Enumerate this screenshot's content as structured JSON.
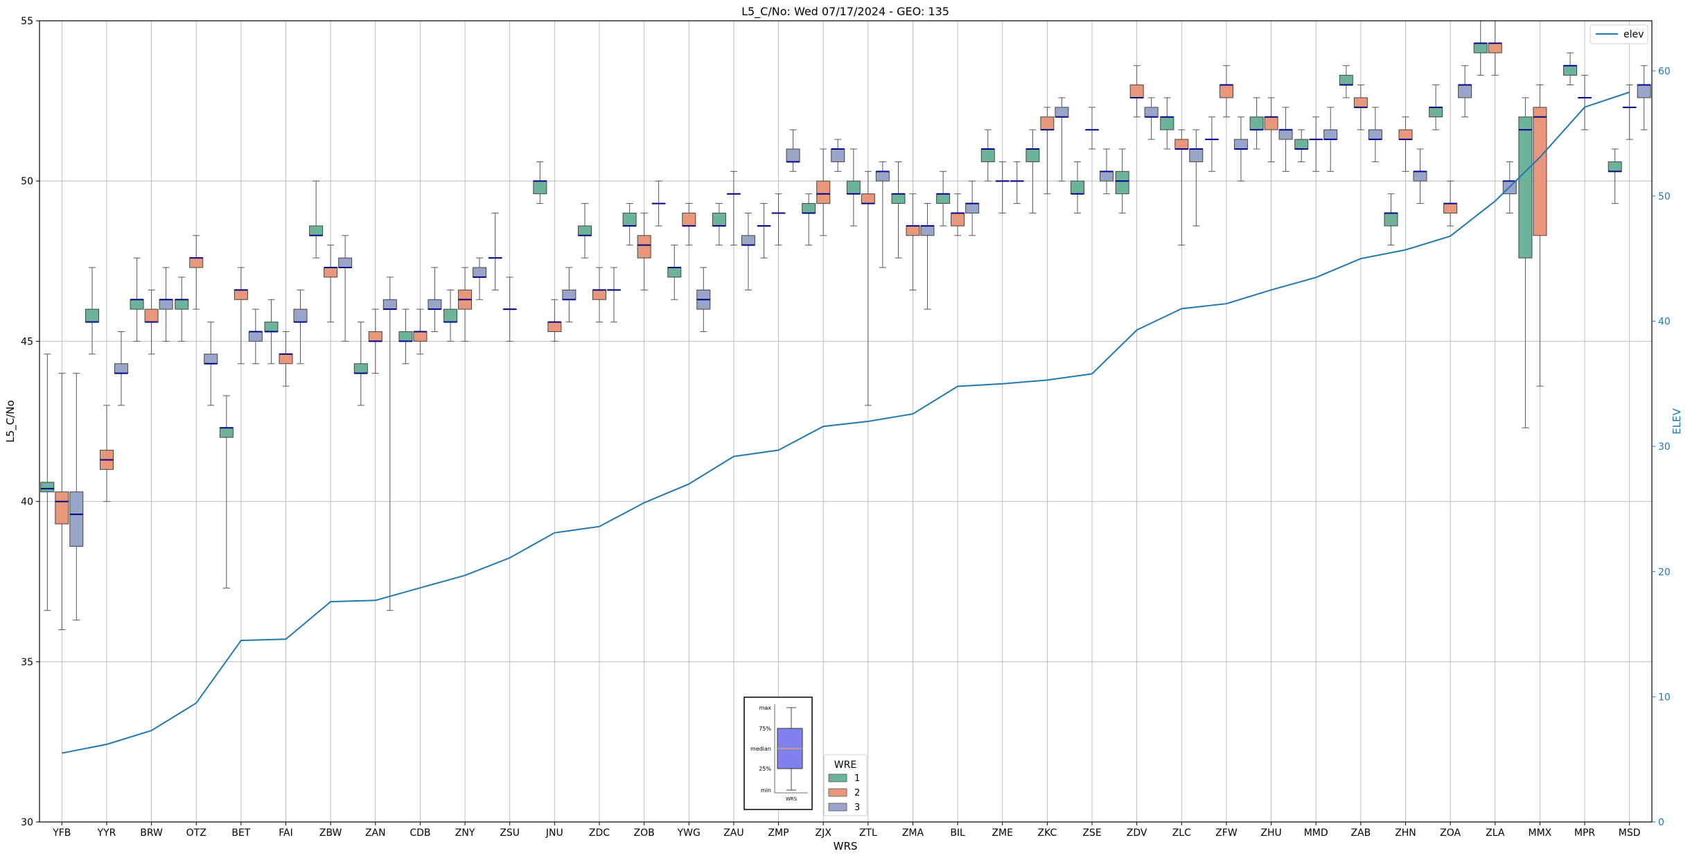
{
  "chart_data": {
    "type": "box",
    "title": "L5_C/No: Wed 07/17/2024 - GEO: 135",
    "xlabel": "WRS",
    "ylabel": "L5_C/No",
    "y2label": "ELEV",
    "ylim": [
      30,
      55
    ],
    "y2lim": [
      0,
      64
    ],
    "yticks": [
      30,
      35,
      40,
      45,
      50,
      55
    ],
    "y2ticks": [
      0,
      10,
      20,
      30,
      40,
      50,
      60
    ],
    "grid": true,
    "categories": [
      "YFB",
      "YYR",
      "BRW",
      "OTZ",
      "BET",
      "FAI",
      "ZBW",
      "ZAN",
      "CDB",
      "ZNY",
      "ZSU",
      "JNU",
      "ZDC",
      "ZOB",
      "YWG",
      "ZAU",
      "ZMP",
      "ZJX",
      "ZTL",
      "ZMA",
      "BIL",
      "ZME",
      "ZKC",
      "ZSE",
      "ZDV",
      "ZLC",
      "ZFW",
      "ZHU",
      "MMD",
      "ZAB",
      "ZHN",
      "ZOA",
      "ZLA",
      "MMX",
      "MPR",
      "MSD"
    ],
    "legend": {
      "title": "WRE",
      "entries": [
        {
          "label": "1",
          "color": "#6db39a"
        },
        {
          "label": "2",
          "color": "#e9977a"
        },
        {
          "label": "3",
          "color": "#99a5c8"
        }
      ],
      "placement": "bottom-center"
    },
    "line_legend": {
      "label": "elev",
      "placement": "top-right"
    },
    "inset_labels": {
      "max": "max",
      "q3": "75%",
      "median": "median",
      "q1": "25%",
      "min": "min",
      "xlabel": "WRS"
    },
    "boxes": [
      {
        "cat": "YFB",
        "wre": 1,
        "min": 36.6,
        "q1": 40.3,
        "med": 40.4,
        "q3": 40.6,
        "max": 44.6
      },
      {
        "cat": "YFB",
        "wre": 2,
        "min": 36,
        "q1": 39.3,
        "med": 40,
        "q3": 40.3,
        "max": 44
      },
      {
        "cat": "YFB",
        "wre": 3,
        "min": 36.3,
        "q1": 38.6,
        "med": 39.6,
        "q3": 40.3,
        "max": 44
      },
      {
        "cat": "YYR",
        "wre": 1,
        "min": 44.6,
        "q1": 45.6,
        "med": 45.6,
        "q3": 46,
        "max": 47.3
      },
      {
        "cat": "YYR",
        "wre": 2,
        "min": 40,
        "q1": 41,
        "med": 41.3,
        "q3": 41.6,
        "max": 43
      },
      {
        "cat": "YYR",
        "wre": 3,
        "min": 43,
        "q1": 44,
        "med": 44,
        "q3": 44.3,
        "max": 45.3
      },
      {
        "cat": "BRW",
        "wre": 1,
        "min": 45,
        "q1": 46,
        "med": 46.3,
        "q3": 46.3,
        "max": 47.6
      },
      {
        "cat": "BRW",
        "wre": 2,
        "min": 44.6,
        "q1": 45.6,
        "med": 45.6,
        "q3": 46,
        "max": 46.6
      },
      {
        "cat": "BRW",
        "wre": 3,
        "min": 45,
        "q1": 46,
        "med": 46.3,
        "q3": 46.3,
        "max": 47.3
      },
      {
        "cat": "OTZ",
        "wre": 1,
        "min": 45,
        "q1": 46,
        "med": 46.3,
        "q3": 46.3,
        "max": 47
      },
      {
        "cat": "OTZ",
        "wre": 2,
        "min": 46,
        "q1": 47.3,
        "med": 47.6,
        "q3": 47.6,
        "max": 48.3
      },
      {
        "cat": "OTZ",
        "wre": 3,
        "min": 43,
        "q1": 44.3,
        "med": 44.3,
        "q3": 44.6,
        "max": 45.6
      },
      {
        "cat": "BET",
        "wre": 1,
        "min": 37.3,
        "q1": 42,
        "med": 42.3,
        "q3": 42.3,
        "max": 43.3
      },
      {
        "cat": "BET",
        "wre": 2,
        "min": 44.3,
        "q1": 46.3,
        "med": 46.6,
        "q3": 46.6,
        "max": 47.3
      },
      {
        "cat": "BET",
        "wre": 3,
        "min": 44.3,
        "q1": 45,
        "med": 45.3,
        "q3": 45.3,
        "max": 46
      },
      {
        "cat": "FAI",
        "wre": 1,
        "min": 44.3,
        "q1": 45.3,
        "med": 45.3,
        "q3": 45.6,
        "max": 46.3
      },
      {
        "cat": "FAI",
        "wre": 2,
        "min": 43.6,
        "q1": 44.3,
        "med": 44.6,
        "q3": 44.6,
        "max": 45.3
      },
      {
        "cat": "FAI",
        "wre": 3,
        "min": 44.3,
        "q1": 45.6,
        "med": 45.6,
        "q3": 46,
        "max": 46.6
      },
      {
        "cat": "ZBW",
        "wre": 1,
        "min": 47.6,
        "q1": 48.3,
        "med": 48.3,
        "q3": 48.6,
        "max": 50
      },
      {
        "cat": "ZBW",
        "wre": 2,
        "min": 45.6,
        "q1": 47,
        "med": 47.3,
        "q3": 47.3,
        "max": 48
      },
      {
        "cat": "ZBW",
        "wre": 3,
        "min": 45,
        "q1": 47.3,
        "med": 47.3,
        "q3": 47.6,
        "max": 48.3
      },
      {
        "cat": "ZAN",
        "wre": 1,
        "min": 43,
        "q1": 44,
        "med": 44,
        "q3": 44.3,
        "max": 45.6
      },
      {
        "cat": "ZAN",
        "wre": 2,
        "min": 44,
        "q1": 45,
        "med": 45,
        "q3": 45.3,
        "max": 46
      },
      {
        "cat": "ZAN",
        "wre": 3,
        "min": 36.6,
        "q1": 46,
        "med": 46,
        "q3": 46.3,
        "max": 47
      },
      {
        "cat": "CDB",
        "wre": 1,
        "min": 44.3,
        "q1": 45,
        "med": 45,
        "q3": 45.3,
        "max": 46
      },
      {
        "cat": "CDB",
        "wre": 2,
        "min": 44.6,
        "q1": 45,
        "med": 45.3,
        "q3": 45.3,
        "max": 46
      },
      {
        "cat": "CDB",
        "wre": 3,
        "min": 45.3,
        "q1": 46,
        "med": 46,
        "q3": 46.3,
        "max": 47.3
      },
      {
        "cat": "ZNY",
        "wre": 1,
        "min": 45,
        "q1": 45.6,
        "med": 45.6,
        "q3": 46,
        "max": 46.6
      },
      {
        "cat": "ZNY",
        "wre": 2,
        "min": 45,
        "q1": 46,
        "med": 46.3,
        "q3": 46.6,
        "max": 47.3
      },
      {
        "cat": "ZNY",
        "wre": 3,
        "min": 46.3,
        "q1": 47,
        "med": 47,
        "q3": 47.3,
        "max": 47.6
      },
      {
        "cat": "ZSU",
        "wre": 1,
        "min": 46.6,
        "q1": 47.6,
        "med": 47.6,
        "q3": 47.6,
        "max": 49
      },
      {
        "cat": "ZSU",
        "wre": 2,
        "min": 45,
        "q1": 46,
        "med": 46,
        "q3": 46,
        "max": 47
      },
      {
        "cat": "JNU",
        "wre": 1,
        "min": 49.3,
        "q1": 49.6,
        "med": 50,
        "q3": 50,
        "max": 50.6
      },
      {
        "cat": "JNU",
        "wre": 2,
        "min": 45,
        "q1": 45.3,
        "med": 45.6,
        "q3": 45.6,
        "max": 46.3
      },
      {
        "cat": "JNU",
        "wre": 3,
        "min": 45.6,
        "q1": 46.3,
        "med": 46.3,
        "q3": 46.6,
        "max": 47.3
      },
      {
        "cat": "ZDC",
        "wre": 1,
        "min": 47.6,
        "q1": 48.3,
        "med": 48.3,
        "q3": 48.6,
        "max": 49.3
      },
      {
        "cat": "ZDC",
        "wre": 2,
        "min": 45.6,
        "q1": 46.3,
        "med": 46.6,
        "q3": 46.6,
        "max": 47.3
      },
      {
        "cat": "ZDC",
        "wre": 3,
        "min": 45.6,
        "q1": 46.6,
        "med": 46.6,
        "q3": 46.6,
        "max": 47.3
      },
      {
        "cat": "ZOB",
        "wre": 1,
        "min": 48,
        "q1": 48.6,
        "med": 48.6,
        "q3": 49,
        "max": 49.3
      },
      {
        "cat": "ZOB",
        "wre": 2,
        "min": 46.6,
        "q1": 47.6,
        "med": 48,
        "q3": 48.3,
        "max": 49
      },
      {
        "cat": "ZOB",
        "wre": 3,
        "min": 48.6,
        "q1": 49.3,
        "med": 49.3,
        "q3": 49.3,
        "max": 50
      },
      {
        "cat": "YWG",
        "wre": 1,
        "min": 46.3,
        "q1": 47,
        "med": 47.3,
        "q3": 47.3,
        "max": 48
      },
      {
        "cat": "YWG",
        "wre": 2,
        "min": 48,
        "q1": 48.6,
        "med": 48.6,
        "q3": 49,
        "max": 49.3
      },
      {
        "cat": "YWG",
        "wre": 3,
        "min": 45.3,
        "q1": 46,
        "med": 46.3,
        "q3": 46.6,
        "max": 47.3
      },
      {
        "cat": "ZAU",
        "wre": 1,
        "min": 48,
        "q1": 48.6,
        "med": 48.6,
        "q3": 49,
        "max": 49.3
      },
      {
        "cat": "ZAU",
        "wre": 2,
        "min": 48,
        "q1": 49.6,
        "med": 49.6,
        "q3": 49.6,
        "max": 50.3
      },
      {
        "cat": "ZAU",
        "wre": 3,
        "min": 46.6,
        "q1": 48,
        "med": 48,
        "q3": 48.3,
        "max": 49
      },
      {
        "cat": "ZMP",
        "wre": 1,
        "min": 47.6,
        "q1": 48.6,
        "med": 48.6,
        "q3": 48.6,
        "max": 49.3
      },
      {
        "cat": "ZMP",
        "wre": 2,
        "min": 48,
        "q1": 49,
        "med": 49,
        "q3": 49,
        "max": 49.6
      },
      {
        "cat": "ZMP",
        "wre": 3,
        "min": 50.3,
        "q1": 50.6,
        "med": 50.6,
        "q3": 51,
        "max": 51.6
      },
      {
        "cat": "ZJX",
        "wre": 1,
        "min": 48,
        "q1": 49,
        "med": 49,
        "q3": 49.3,
        "max": 49.6
      },
      {
        "cat": "ZJX",
        "wre": 2,
        "min": 48.3,
        "q1": 49.3,
        "med": 49.6,
        "q3": 50,
        "max": 51
      },
      {
        "cat": "ZJX",
        "wre": 3,
        "min": 50.3,
        "q1": 50.6,
        "med": 51,
        "q3": 51,
        "max": 51.3
      },
      {
        "cat": "ZTL",
        "wre": 1,
        "min": 48.6,
        "q1": 49.6,
        "med": 49.6,
        "q3": 50,
        "max": 51
      },
      {
        "cat": "ZTL",
        "wre": 2,
        "min": 43,
        "q1": 49.3,
        "med": 49.3,
        "q3": 49.6,
        "max": 50.3
      },
      {
        "cat": "ZTL",
        "wre": 3,
        "min": 47.3,
        "q1": 50,
        "med": 50.3,
        "q3": 50.3,
        "max": 50.6
      },
      {
        "cat": "ZMA",
        "wre": 1,
        "min": 47.6,
        "q1": 49.3,
        "med": 49.6,
        "q3": 49.6,
        "max": 50.6
      },
      {
        "cat": "ZMA",
        "wre": 2,
        "min": 46.6,
        "q1": 48.3,
        "med": 48.6,
        "q3": 48.6,
        "max": 49.6
      },
      {
        "cat": "ZMA",
        "wre": 3,
        "min": 46,
        "q1": 48.3,
        "med": 48.6,
        "q3": 48.6,
        "max": 49.3
      },
      {
        "cat": "BIL",
        "wre": 1,
        "min": 48.6,
        "q1": 49.3,
        "med": 49.6,
        "q3": 49.6,
        "max": 50.3
      },
      {
        "cat": "BIL",
        "wre": 2,
        "min": 48.3,
        "q1": 48.6,
        "med": 49,
        "q3": 49,
        "max": 49.6
      },
      {
        "cat": "BIL",
        "wre": 3,
        "min": 48.3,
        "q1": 49,
        "med": 49.3,
        "q3": 49.3,
        "max": 50
      },
      {
        "cat": "ZME",
        "wre": 1,
        "min": 50,
        "q1": 50.6,
        "med": 51,
        "q3": 51,
        "max": 51.6
      },
      {
        "cat": "ZME",
        "wre": 2,
        "min": 49,
        "q1": 50,
        "med": 50,
        "q3": 50,
        "max": 50.6
      },
      {
        "cat": "ZME",
        "wre": 3,
        "min": 49.3,
        "q1": 50,
        "med": 50,
        "q3": 50,
        "max": 50.6
      },
      {
        "cat": "ZKC",
        "wre": 1,
        "min": 49,
        "q1": 50.6,
        "med": 51,
        "q3": 51,
        "max": 51.6
      },
      {
        "cat": "ZKC",
        "wre": 2,
        "min": 49.6,
        "q1": 51.6,
        "med": 51.6,
        "q3": 52,
        "max": 52.3
      },
      {
        "cat": "ZKC",
        "wre": 3,
        "min": 50,
        "q1": 52,
        "med": 52,
        "q3": 52.3,
        "max": 52.6
      },
      {
        "cat": "ZSE",
        "wre": 1,
        "min": 49,
        "q1": 49.6,
        "med": 49.6,
        "q3": 50,
        "max": 50.6
      },
      {
        "cat": "ZSE",
        "wre": 2,
        "min": 51,
        "q1": 51.6,
        "med": 51.6,
        "q3": 51.6,
        "max": 52.3
      },
      {
        "cat": "ZSE",
        "wre": 3,
        "min": 49.6,
        "q1": 50,
        "med": 50.3,
        "q3": 50.3,
        "max": 51
      },
      {
        "cat": "ZDV",
        "wre": 1,
        "min": 49,
        "q1": 49.6,
        "med": 50,
        "q3": 50.3,
        "max": 51
      },
      {
        "cat": "ZDV",
        "wre": 2,
        "min": 52,
        "q1": 52.6,
        "med": 52.6,
        "q3": 53,
        "max": 53.6
      },
      {
        "cat": "ZDV",
        "wre": 3,
        "min": 51.3,
        "q1": 52,
        "med": 52,
        "q3": 52.3,
        "max": 52.6
      },
      {
        "cat": "ZLC",
        "wre": 1,
        "min": 51,
        "q1": 51.6,
        "med": 52,
        "q3": 52,
        "max": 52.6
      },
      {
        "cat": "ZLC",
        "wre": 2,
        "min": 48,
        "q1": 51,
        "med": 51,
        "q3": 51.3,
        "max": 51.6
      },
      {
        "cat": "ZLC",
        "wre": 3,
        "min": 48.6,
        "q1": 50.6,
        "med": 51,
        "q3": 51,
        "max": 51.6
      },
      {
        "cat": "ZFW",
        "wre": 1,
        "min": 50.3,
        "q1": 51.3,
        "med": 51.3,
        "q3": 51.3,
        "max": 52
      },
      {
        "cat": "ZFW",
        "wre": 2,
        "min": 52,
        "q1": 52.6,
        "med": 53,
        "q3": 53,
        "max": 53.6
      },
      {
        "cat": "ZFW",
        "wre": 3,
        "min": 50,
        "q1": 51,
        "med": 51,
        "q3": 51.3,
        "max": 52
      },
      {
        "cat": "ZHU",
        "wre": 1,
        "min": 51,
        "q1": 51.6,
        "med": 51.6,
        "q3": 52,
        "max": 52.6
      },
      {
        "cat": "ZHU",
        "wre": 2,
        "min": 50.6,
        "q1": 51.6,
        "med": 52,
        "q3": 52,
        "max": 52.6
      },
      {
        "cat": "ZHU",
        "wre": 3,
        "min": 50.3,
        "q1": 51.3,
        "med": 51.6,
        "q3": 51.6,
        "max": 52.3
      },
      {
        "cat": "MMD",
        "wre": 1,
        "min": 50.6,
        "q1": 51,
        "med": 51,
        "q3": 51.3,
        "max": 51.6
      },
      {
        "cat": "MMD",
        "wre": 2,
        "min": 50.3,
        "q1": 51.3,
        "med": 51.3,
        "q3": 51.3,
        "max": 52
      },
      {
        "cat": "MMD",
        "wre": 3,
        "min": 50.3,
        "q1": 51.3,
        "med": 51.3,
        "q3": 51.6,
        "max": 52.3
      },
      {
        "cat": "ZAB",
        "wre": 1,
        "min": 52.6,
        "q1": 53,
        "med": 53,
        "q3": 53.3,
        "max": 53.6
      },
      {
        "cat": "ZAB",
        "wre": 2,
        "min": 51.6,
        "q1": 52.3,
        "med": 52.3,
        "q3": 52.6,
        "max": 53
      },
      {
        "cat": "ZAB",
        "wre": 3,
        "min": 50.6,
        "q1": 51.3,
        "med": 51.3,
        "q3": 51.6,
        "max": 52.3
      },
      {
        "cat": "ZHN",
        "wre": 1,
        "min": 48,
        "q1": 48.6,
        "med": 49,
        "q3": 49,
        "max": 49.6
      },
      {
        "cat": "ZHN",
        "wre": 2,
        "min": 50.3,
        "q1": 51.3,
        "med": 51.3,
        "q3": 51.6,
        "max": 52
      },
      {
        "cat": "ZHN",
        "wre": 3,
        "min": 49.3,
        "q1": 50,
        "med": 50.3,
        "q3": 50.3,
        "max": 51
      },
      {
        "cat": "ZOA",
        "wre": 1,
        "min": 51.6,
        "q1": 52,
        "med": 52.3,
        "q3": 52.3,
        "max": 53
      },
      {
        "cat": "ZOA",
        "wre": 2,
        "min": 48.6,
        "q1": 49,
        "med": 49.3,
        "q3": 49.3,
        "max": 50
      },
      {
        "cat": "ZOA",
        "wre": 3,
        "min": 52,
        "q1": 52.6,
        "med": 53,
        "q3": 53,
        "max": 53.6
      },
      {
        "cat": "ZLA",
        "wre": 1,
        "min": 53.3,
        "q1": 54,
        "med": 54.3,
        "q3": 54.3,
        "max": 55
      },
      {
        "cat": "ZLA",
        "wre": 2,
        "min": 53.3,
        "q1": 54,
        "med": 54.3,
        "q3": 54.3,
        "max": 55
      },
      {
        "cat": "ZLA",
        "wre": 3,
        "min": 49,
        "q1": 49.6,
        "med": 50,
        "q3": 50,
        "max": 50.6
      },
      {
        "cat": "MMX",
        "wre": 1,
        "min": 42.3,
        "q1": 47.6,
        "med": 51.6,
        "q3": 52,
        "max": 52.6
      },
      {
        "cat": "MMX",
        "wre": 2,
        "min": 43.6,
        "q1": 48.3,
        "med": 52,
        "q3": 52.3,
        "max": 53
      },
      {
        "cat": "MPR",
        "wre": 1,
        "min": 53,
        "q1": 53.3,
        "med": 53.6,
        "q3": 53.6,
        "max": 54
      },
      {
        "cat": "MPR",
        "wre": 2,
        "min": 51.6,
        "q1": 52.6,
        "med": 52.6,
        "q3": 52.6,
        "max": 53.3
      },
      {
        "cat": "MSD",
        "wre": 1,
        "min": 49.3,
        "q1": 50.3,
        "med": 50.3,
        "q3": 50.6,
        "max": 51
      },
      {
        "cat": "MSD",
        "wre": 2,
        "min": 51.3,
        "q1": 52.3,
        "med": 52.3,
        "q3": 52.3,
        "max": 53
      },
      {
        "cat": "MSD",
        "wre": 3,
        "min": 51.6,
        "q1": 52.6,
        "med": 53,
        "q3": 53,
        "max": 53.6
      }
    ],
    "elev": [
      5.5,
      6.2,
      7.3,
      9.5,
      14.5,
      14.6,
      17.6,
      17.7,
      18.7,
      19.7,
      21.1,
      23.1,
      23.6,
      25.5,
      27.0,
      29.2,
      29.7,
      31.6,
      32.0,
      32.6,
      34.8,
      35.0,
      35.3,
      35.8,
      39.3,
      41.0,
      41.4,
      42.5,
      43.5,
      45.0,
      45.7,
      46.8,
      49.6,
      53.1,
      57.1,
      58.3
    ]
  }
}
